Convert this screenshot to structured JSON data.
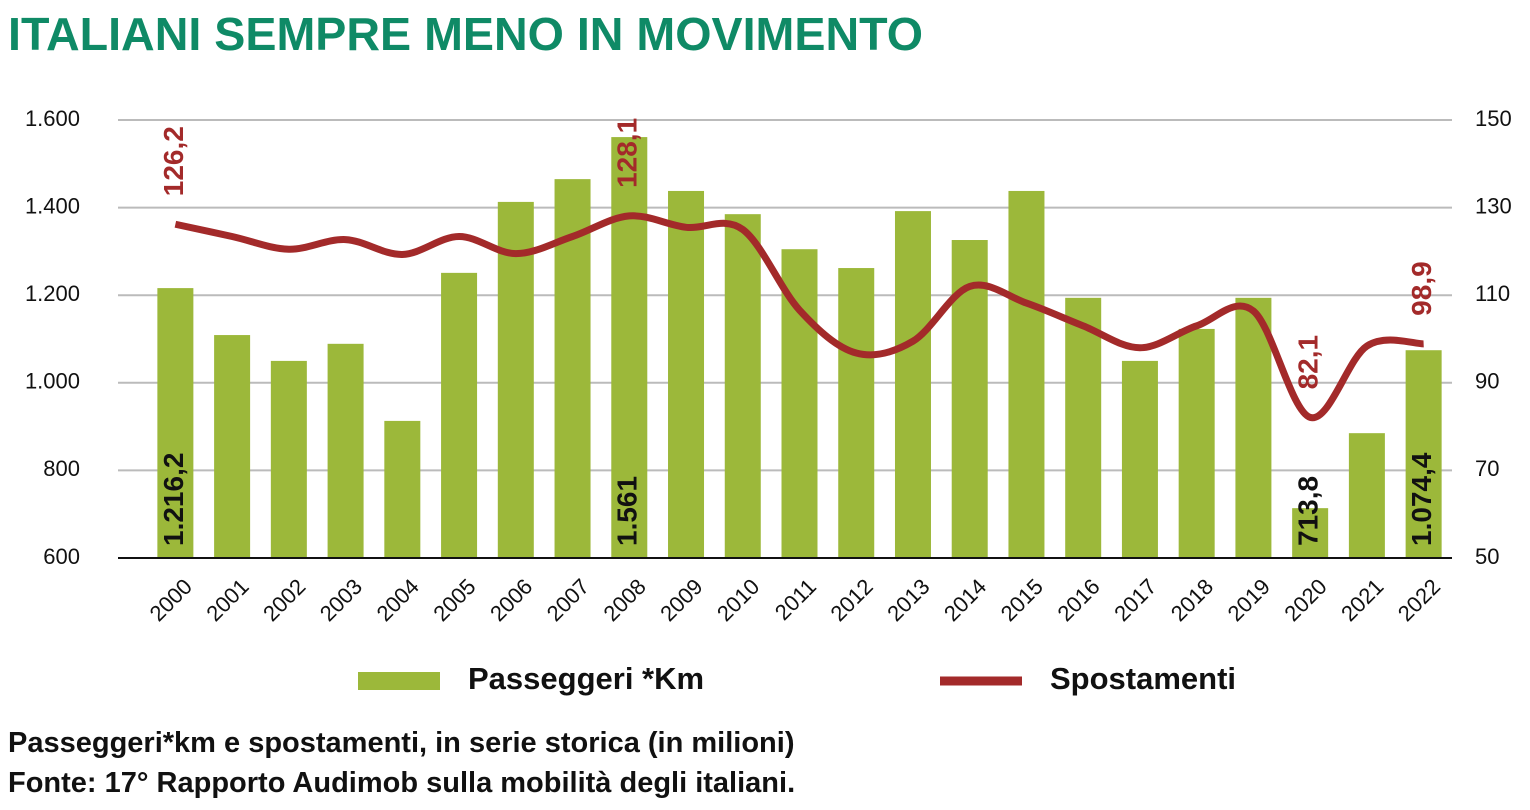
{
  "chart_data": {
    "type": "bar-line",
    "title": "ITALIANI SEMPRE MENO IN MOVIMENTO",
    "subtitle": "Passeggeri*km e spostamenti, in serie storica (in milioni)",
    "source": "Fonte: 17° Rapporto Audimob sulla mobilità degli italiani.",
    "categories": [
      "2000",
      "2001",
      "2002",
      "2003",
      "2004",
      "2005",
      "2006",
      "2007",
      "2008",
      "2009",
      "2010",
      "2011",
      "2012",
      "2013",
      "2014",
      "2015",
      "2016",
      "2017",
      "2018",
      "2019",
      "2020",
      "2021",
      "2022"
    ],
    "series": [
      {
        "name": "Passeggeri *Km",
        "type": "bar",
        "color": "#9cb83a",
        "values": [
          1216.2,
          1109,
          1050,
          1089,
          913,
          1251,
          1413,
          1465,
          1561,
          1438,
          1385,
          1305,
          1262,
          1392,
          1326,
          1438,
          1194,
          1050,
          1123,
          1194,
          713.8,
          885,
          1074.4
        ],
        "value_labels": [
          "1.216,2",
          null,
          null,
          null,
          null,
          null,
          null,
          null,
          "1.561",
          null,
          null,
          null,
          null,
          null,
          null,
          null,
          null,
          null,
          null,
          null,
          "713,8",
          null,
          "1.074,4"
        ]
      },
      {
        "name": "Spostamenti",
        "type": "line",
        "axis": "y2",
        "color": "#a32a2a",
        "values": [
          126.2,
          123.4,
          120.5,
          122.7,
          119.3,
          123.4,
          119.5,
          123.4,
          128.1,
          125.5,
          125,
          106.6,
          96.8,
          99.5,
          112,
          108.2,
          103,
          98,
          103,
          106.4,
          82.1,
          98.4,
          98.9
        ],
        "value_labels": [
          "126,2",
          null,
          null,
          null,
          null,
          null,
          null,
          null,
          "128,1",
          null,
          null,
          null,
          null,
          null,
          null,
          null,
          null,
          null,
          null,
          null,
          "82,1",
          null,
          "98,9"
        ]
      }
    ],
    "ylim": [
      600,
      1600
    ],
    "yticks": [
      600,
      800,
      {
        "value": 1000,
        "label": "1.000"
      },
      {
        "value": 1200,
        "label": "1.200"
      },
      {
        "value": 1400,
        "label": "1.400"
      },
      {
        "value": 1600,
        "label": "1.600"
      }
    ],
    "y2lim": [
      50,
      150
    ],
    "y2ticks": [
      50,
      70,
      90,
      110,
      130,
      150
    ],
    "grid": true
  }
}
